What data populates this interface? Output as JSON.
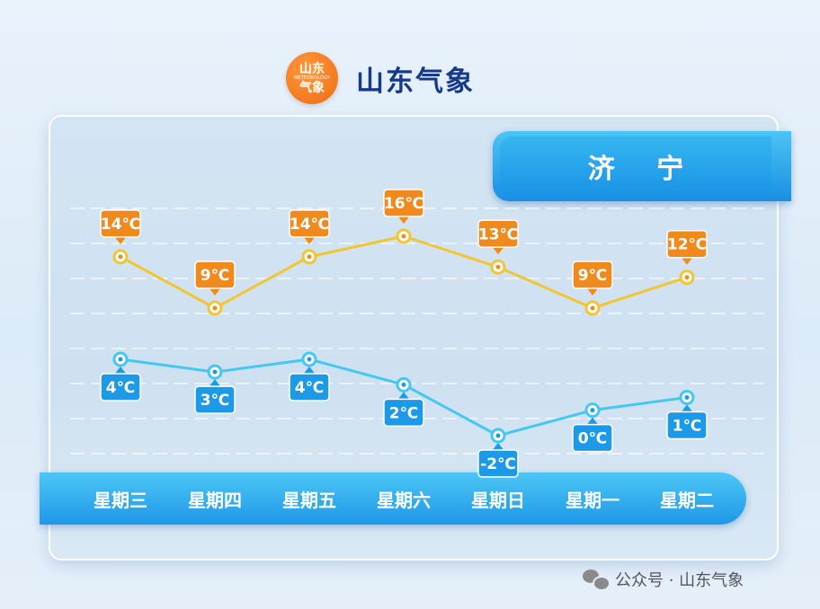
{
  "brand": {
    "logo_top": "山东",
    "logo_mid": "METEOROLOGY",
    "logo_bottom": "气象",
    "name": "山东气象"
  },
  "city": "济 宁",
  "footer": {
    "text": "公众号 · 山东气象"
  },
  "colors": {
    "high_line": "#f2c532",
    "high_label": "#f08a1c",
    "low_line": "#44c8f0",
    "low_label": "#1c9ae8"
  },
  "chart_data": {
    "type": "line",
    "categories": [
      "星期三",
      "星期四",
      "星期五",
      "星期六",
      "星期日",
      "星期一",
      "星期二"
    ],
    "unit": "℃",
    "series": [
      {
        "key": "high",
        "values": [
          14,
          9,
          14,
          16,
          13,
          9,
          12
        ],
        "labels": [
          "14℃",
          "9℃",
          "14℃",
          "16℃",
          "13℃",
          "9℃",
          "12℃"
        ]
      },
      {
        "key": "low",
        "values": [
          4,
          3,
          4,
          2,
          -2,
          0,
          1
        ],
        "labels": [
          "4℃",
          "3℃",
          "4℃",
          "2℃",
          "-2℃",
          "0℃",
          "1℃"
        ]
      }
    ],
    "grid": true,
    "xlabel": "",
    "ylabel": ""
  }
}
